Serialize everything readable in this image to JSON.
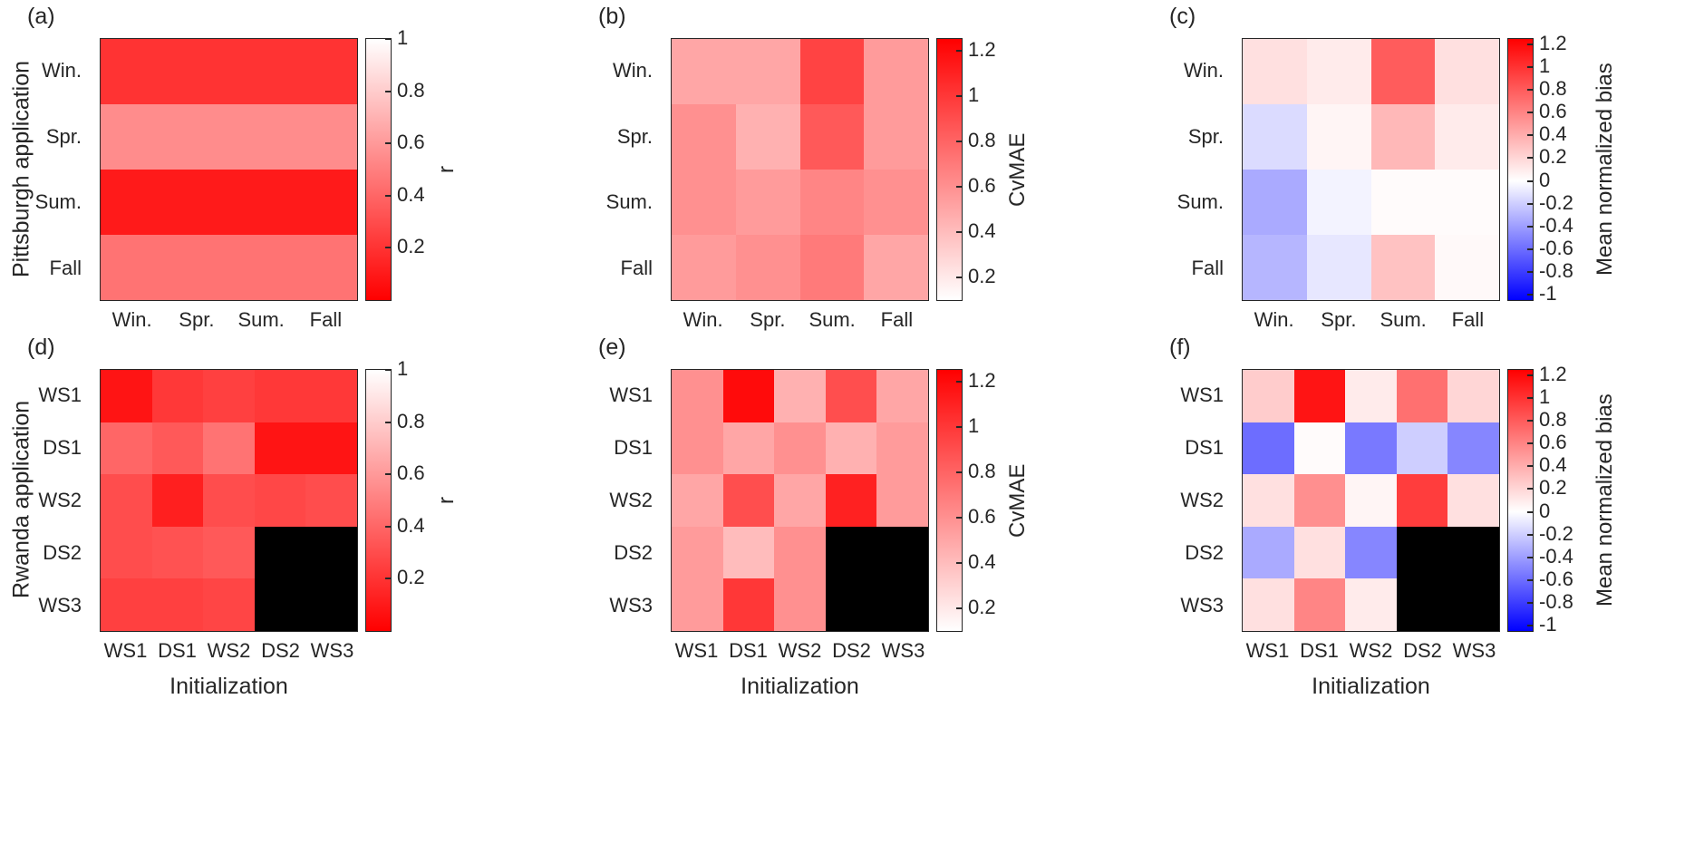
{
  "figure": {
    "background": "#ffffff",
    "row_group_labels": [
      "Pittsburgh application",
      "Rwanda application"
    ]
  },
  "colors": {
    "heat_red": "#ff0000",
    "heat_blue": "#0000ff",
    "heat_white": "#ffffff",
    "missing_black": "#000000",
    "text": "#262626"
  },
  "chart_data": [
    {
      "id": "a",
      "panel_label": "(a)",
      "type": "heatmap",
      "metric": "r",
      "row_group": "Pittsburgh application",
      "x_categories": [
        "Win.",
        "Spr.",
        "Sum.",
        "Fall"
      ],
      "y_categories": [
        "Win.",
        "Spr.",
        "Sum.",
        "Fall"
      ],
      "xlabel": "",
      "values": [
        [
          0.2,
          0.2,
          0.2,
          0.2
        ],
        [
          0.55,
          0.55,
          0.55,
          0.55
        ],
        [
          0.1,
          0.1,
          0.1,
          0.1
        ],
        [
          0.45,
          0.45,
          0.45,
          0.45
        ]
      ],
      "colorbar": {
        "label": "r",
        "min": 0,
        "max": 1,
        "ticks": [
          1,
          0.8,
          0.6,
          0.4,
          0.2
        ],
        "colormap": "red_to_white"
      }
    },
    {
      "id": "b",
      "panel_label": "(b)",
      "type": "heatmap",
      "metric": "CvMAE",
      "row_group": "Pittsburgh application",
      "x_categories": [
        "Win.",
        "Spr.",
        "Sum.",
        "Fall"
      ],
      "y_categories": [
        "Win.",
        "Spr.",
        "Sum.",
        "Fall"
      ],
      "xlabel": "",
      "values": [
        [
          0.5,
          0.5,
          0.95,
          0.55
        ],
        [
          0.6,
          0.45,
          0.85,
          0.55
        ],
        [
          0.6,
          0.55,
          0.65,
          0.6
        ],
        [
          0.55,
          0.6,
          0.7,
          0.5
        ]
      ],
      "colorbar": {
        "label": "CvMAE",
        "min": 0.1,
        "max": 1.25,
        "ticks": [
          1.2,
          1,
          0.8,
          0.6,
          0.4,
          0.2
        ],
        "colormap": "white_to_red"
      }
    },
    {
      "id": "c",
      "panel_label": "(c)",
      "type": "heatmap",
      "metric": "Mean normalized bias",
      "row_group": "Pittsburgh application",
      "x_categories": [
        "Win.",
        "Spr.",
        "Sum.",
        "Fall"
      ],
      "y_categories": [
        "Win.",
        "Spr.",
        "Sum.",
        "Fall"
      ],
      "xlabel": "",
      "values": [
        [
          0.15,
          0.1,
          0.8,
          0.15
        ],
        [
          -0.15,
          0.05,
          0.35,
          0.1
        ],
        [
          -0.35,
          -0.05,
          0.02,
          0.02
        ],
        [
          -0.3,
          -0.1,
          0.3,
          0.03
        ]
      ],
      "colorbar": {
        "label": "Mean normalized bias",
        "min": -1.05,
        "max": 1.25,
        "ticks": [
          1.2,
          1,
          0.8,
          0.6,
          0.4,
          0.2,
          0,
          -0.2,
          -0.4,
          -0.6,
          -0.8,
          -1
        ],
        "colormap": "diverging"
      }
    },
    {
      "id": "d",
      "panel_label": "(d)",
      "type": "heatmap",
      "metric": "r",
      "row_group": "Rwanda application",
      "x_categories": [
        "WS1",
        "DS1",
        "WS2",
        "DS2",
        "WS3"
      ],
      "y_categories": [
        "WS1",
        "DS1",
        "WS2",
        "DS2",
        "WS3"
      ],
      "xlabel": "Initialization",
      "values": [
        [
          0.08,
          0.22,
          0.25,
          0.22,
          0.22
        ],
        [
          0.4,
          0.35,
          0.45,
          0.08,
          0.08
        ],
        [
          0.3,
          0.12,
          0.3,
          0.28,
          0.3
        ],
        [
          0.3,
          0.32,
          0.35,
          null,
          null
        ],
        [
          0.25,
          0.25,
          0.27,
          null,
          null
        ]
      ],
      "colorbar": {
        "label": "r",
        "min": 0,
        "max": 1,
        "ticks": [
          1,
          0.8,
          0.6,
          0.4,
          0.2
        ],
        "colormap": "red_to_white"
      }
    },
    {
      "id": "e",
      "panel_label": "(e)",
      "type": "heatmap",
      "metric": "CvMAE",
      "row_group": "Rwanda application",
      "x_categories": [
        "WS1",
        "DS1",
        "WS2",
        "DS2",
        "WS3"
      ],
      "y_categories": [
        "WS1",
        "DS1",
        "WS2",
        "DS2",
        "WS3"
      ],
      "xlabel": "Initialization",
      "values": [
        [
          0.6,
          1.2,
          0.45,
          0.9,
          0.5
        ],
        [
          0.6,
          0.5,
          0.6,
          0.45,
          0.55
        ],
        [
          0.5,
          0.9,
          0.5,
          1.1,
          0.55
        ],
        [
          0.55,
          0.4,
          0.6,
          null,
          null
        ],
        [
          0.55,
          1.0,
          0.6,
          null,
          null
        ]
      ],
      "colorbar": {
        "label": "CvMAE",
        "min": 0.1,
        "max": 1.25,
        "ticks": [
          1.2,
          1,
          0.8,
          0.6,
          0.4,
          0.2
        ],
        "colormap": "white_to_red"
      }
    },
    {
      "id": "f",
      "panel_label": "(f)",
      "type": "heatmap",
      "metric": "Mean normalized bias",
      "row_group": "Rwanda application",
      "x_categories": [
        "WS1",
        "DS1",
        "WS2",
        "DS2",
        "WS3"
      ],
      "y_categories": [
        "WS1",
        "DS1",
        "WS2",
        "DS2",
        "WS3"
      ],
      "xlabel": "Initialization",
      "values": [
        [
          0.25,
          1.15,
          0.1,
          0.7,
          0.2
        ],
        [
          -0.6,
          0.02,
          -0.55,
          -0.2,
          -0.5
        ],
        [
          0.15,
          0.55,
          0.05,
          0.95,
          0.15
        ],
        [
          -0.35,
          0.15,
          -0.5,
          null,
          null
        ],
        [
          0.15,
          0.6,
          0.1,
          null,
          null
        ]
      ],
      "colorbar": {
        "label": "Mean normalized bias",
        "min": -1.05,
        "max": 1.25,
        "ticks": [
          1.2,
          1,
          0.8,
          0.6,
          0.4,
          0.2,
          0,
          -0.2,
          -0.4,
          -0.6,
          -0.8,
          -1
        ],
        "colormap": "diverging"
      }
    }
  ]
}
